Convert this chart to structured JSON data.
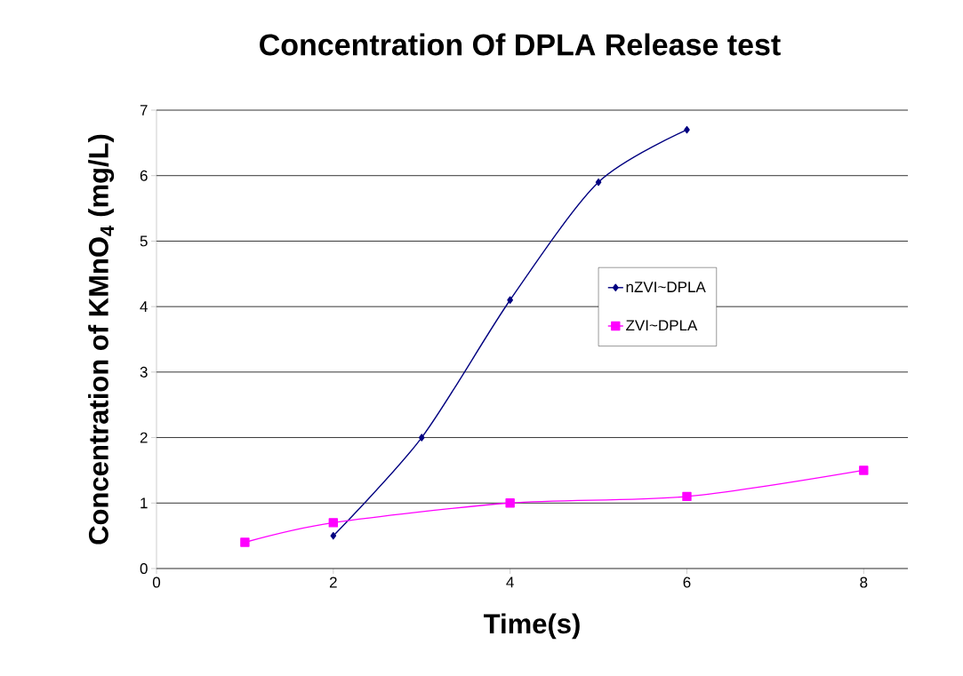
{
  "chart_data": {
    "type": "line",
    "title": "Concentration Of DPLA Release test",
    "xlabel": "Time(s)",
    "ylabel": "Concentration  of KMnO$_{4}$ (mg/L)",
    "xlim": [
      0,
      8.5
    ],
    "xticks": [
      0,
      2,
      4,
      6,
      8
    ],
    "ylim": [
      0,
      7
    ],
    "yticks": [
      0,
      1,
      2,
      3,
      4,
      5,
      6,
      7
    ],
    "grid": "y",
    "legend": "right",
    "series": [
      {
        "name": "nZVI~DPLA",
        "color": "#000080",
        "marker": "diamond",
        "x": [
          2,
          3,
          4,
          5,
          6
        ],
        "values": [
          0.5,
          2,
          4.1,
          5.9,
          6.7
        ]
      },
      {
        "name": "ZVI~DPLA",
        "color": "#ff00ff",
        "marker": "square",
        "x": [
          1,
          2,
          4,
          6,
          8
        ],
        "values": [
          0.4,
          0.7,
          1.0,
          1.1,
          1.5
        ]
      }
    ]
  }
}
